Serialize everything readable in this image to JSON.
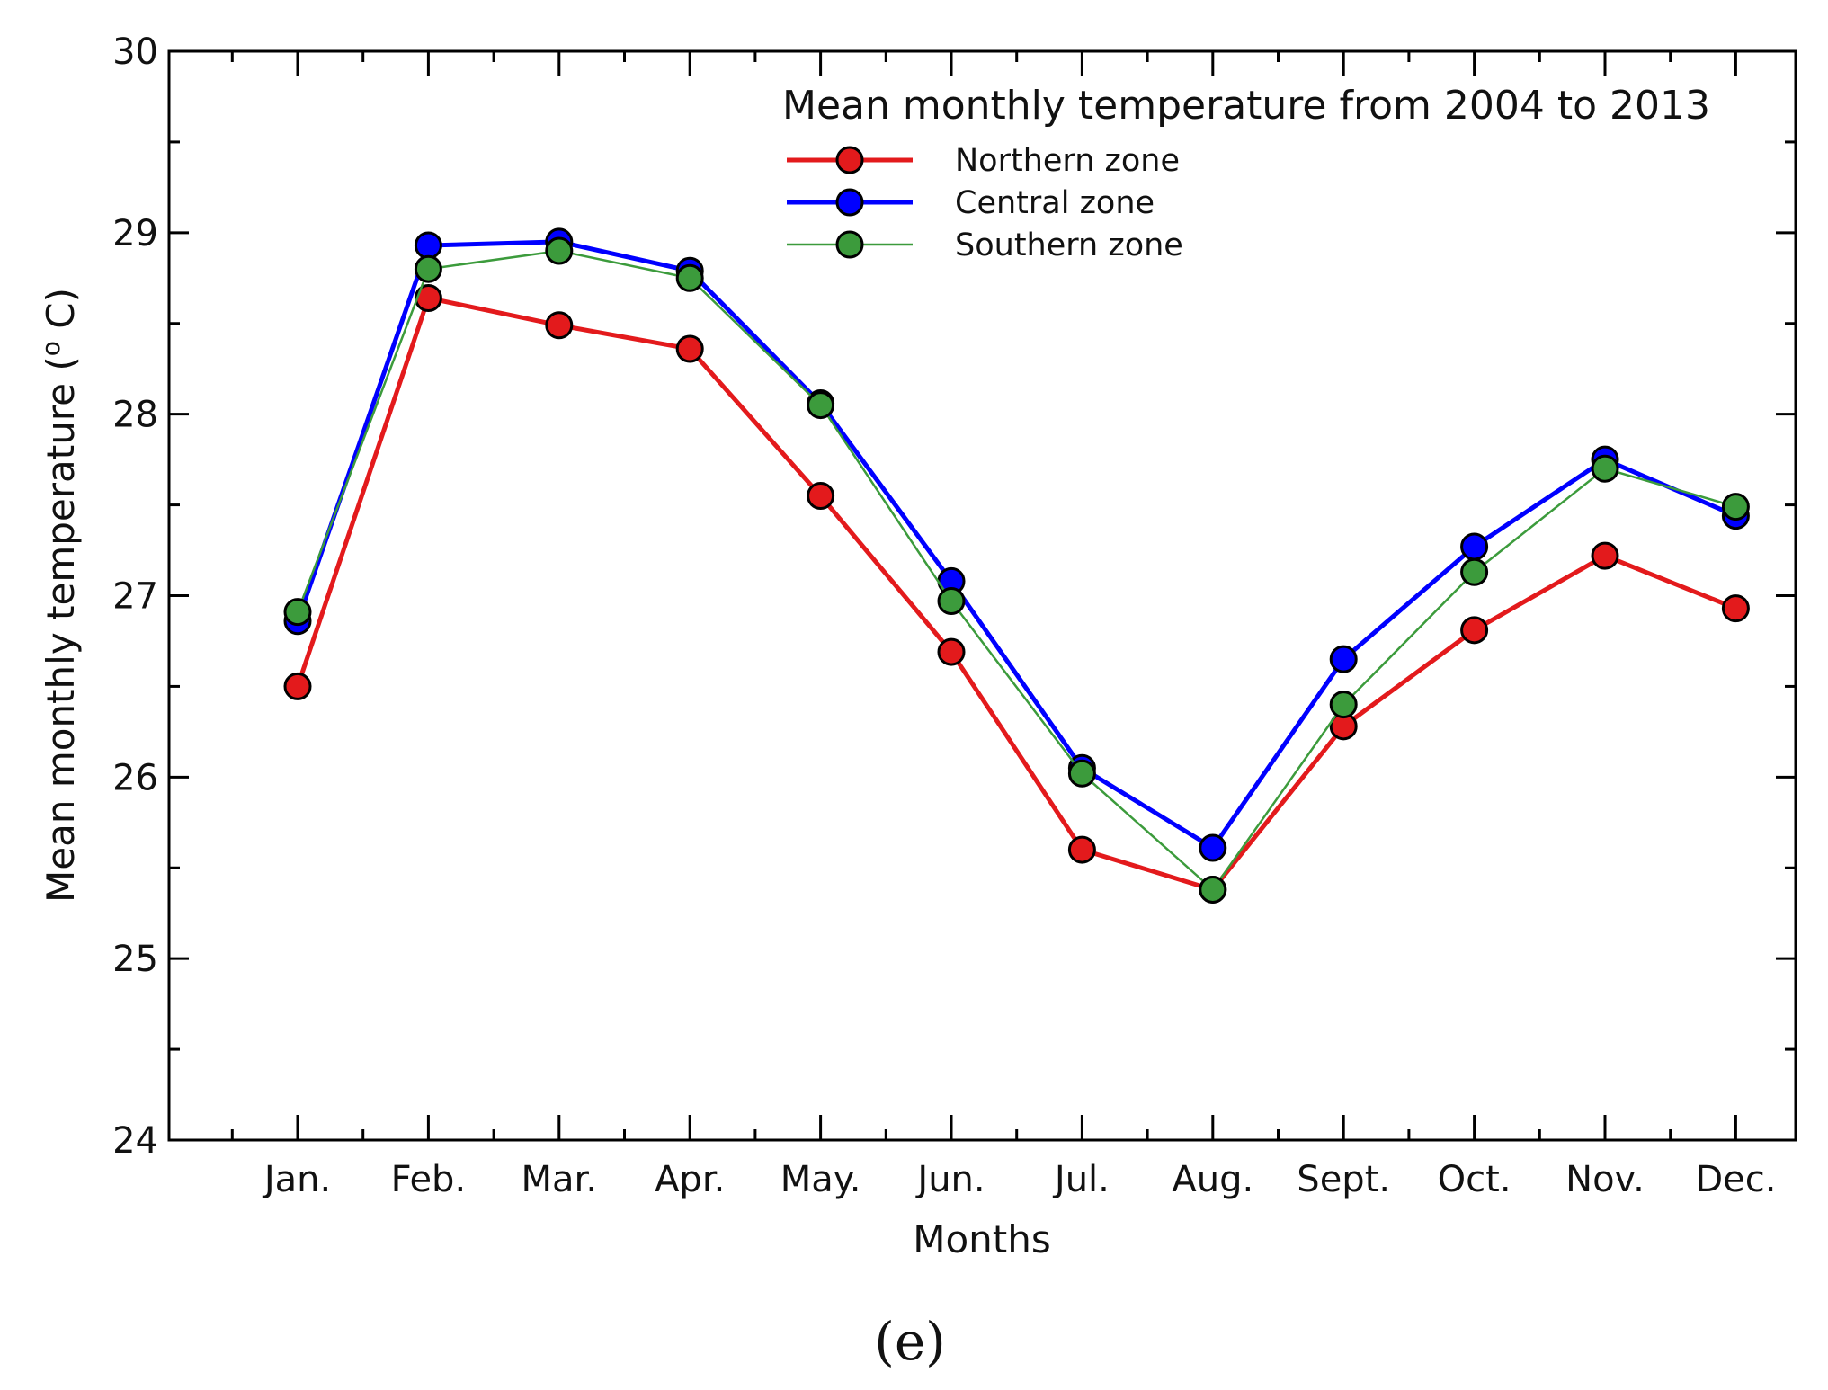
{
  "chart_data": {
    "type": "line",
    "title": "Mean monthly temperature from 2004 to 2013",
    "xlabel": "Months",
    "ylabel": "Mean monthly temperature (° C)",
    "ylabel_parts": {
      "main": "Mean monthly temperature (",
      "sup": "o",
      "unit": " C)"
    },
    "ylim": [
      24,
      30
    ],
    "yticks": [
      24,
      25,
      26,
      27,
      28,
      29,
      30
    ],
    "ytick_labels": [
      "24",
      "25",
      "26",
      "27",
      "28",
      "29",
      "30"
    ],
    "categories": [
      "Jan.",
      "Feb.",
      "Mar.",
      "Apr.",
      "May.",
      "Jun.",
      "Jul.",
      "Aug.",
      "Sept.",
      "Oct.",
      "Nov.",
      "Dec."
    ],
    "grid": false,
    "legend_position": "top-right",
    "panel_label": "(e)",
    "series": [
      {
        "name": "Northern zone",
        "color": "#e31a1c",
        "values": [
          26.5,
          28.64,
          28.49,
          28.36,
          27.55,
          26.69,
          25.6,
          25.38,
          26.28,
          26.81,
          27.22,
          26.93
        ]
      },
      {
        "name": "Central zone",
        "color": "#0000ff",
        "values": [
          26.86,
          28.93,
          28.95,
          28.79,
          28.06,
          27.08,
          26.05,
          25.61,
          26.65,
          27.27,
          27.75,
          27.44
        ]
      },
      {
        "name": "Southern zone",
        "color": "#3c9b3c",
        "values": [
          26.91,
          28.8,
          28.9,
          28.75,
          28.05,
          26.97,
          26.02,
          25.38,
          26.4,
          27.13,
          27.7,
          27.49
        ]
      }
    ]
  }
}
